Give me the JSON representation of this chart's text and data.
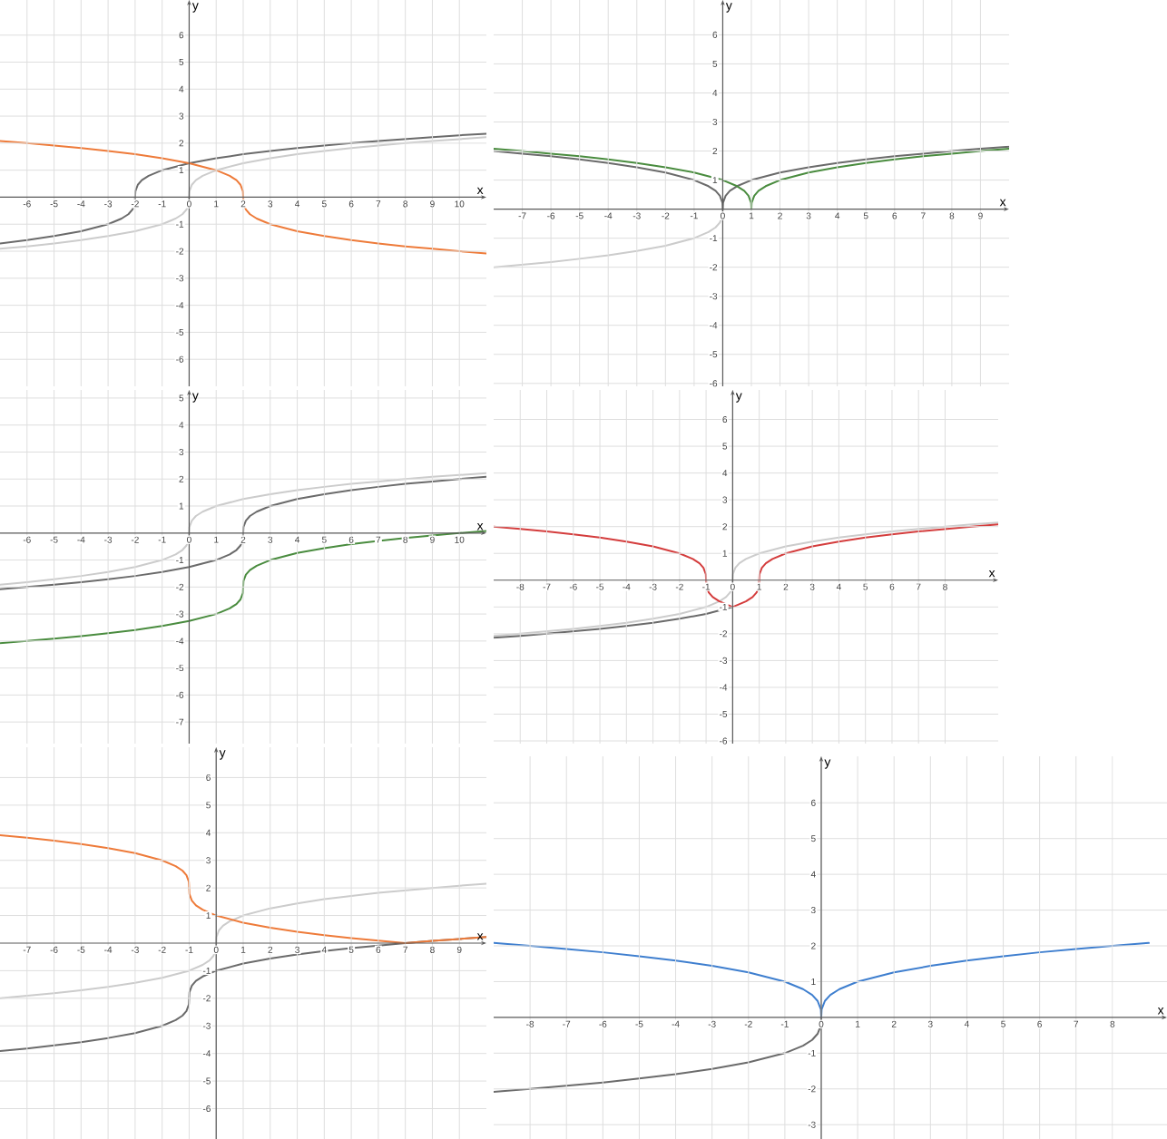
{
  "chart_data": [
    {
      "type": "line",
      "xlabel": "x",
      "ylabel": "y",
      "xlim": [
        -7,
        11
      ],
      "ylim": [
        -7,
        7.3
      ],
      "xticks": [
        -6,
        -5,
        -4,
        -3,
        -2,
        -1,
        0,
        1,
        2,
        3,
        4,
        5,
        6,
        7,
        8,
        9,
        10
      ],
      "yticks": [
        -6,
        -5,
        -4,
        -3,
        -2,
        -1,
        1,
        2,
        3,
        4,
        5,
        6
      ],
      "grid": true,
      "marker": "none",
      "line_style": "solid",
      "series": [
        {
          "color": "#cccccc",
          "x": [
            -7,
            -6,
            -5,
            -4,
            -3,
            -2,
            -1,
            -0.5,
            -0.25,
            -0.1,
            -0.01,
            0,
            0.01,
            0.1,
            0.25,
            0.5,
            1,
            2,
            3,
            4,
            5,
            6,
            7,
            8,
            9,
            10,
            11
          ],
          "values": [
            -1.91,
            -1.82,
            -1.71,
            -1.59,
            -1.44,
            -1.26,
            -1,
            -0.79,
            -0.63,
            -0.46,
            -0.22,
            0,
            0.22,
            0.46,
            0.63,
            0.79,
            1,
            1.26,
            1.44,
            1.59,
            1.71,
            1.82,
            1.91,
            2,
            2.08,
            2.15,
            2.22
          ]
        },
        {
          "color": "#6b6b6b",
          "x": [
            -7,
            -6,
            -5,
            -4,
            -3,
            -2.5,
            -2.25,
            -2.1,
            -2.01,
            -2,
            -1.99,
            -1.9,
            -1.75,
            -1.5,
            -1,
            0,
            1,
            2,
            3,
            4,
            5,
            6,
            7,
            8,
            9,
            10,
            11
          ],
          "values": [
            -1.71,
            -1.59,
            -1.44,
            -1.26,
            -1,
            -0.79,
            -0.63,
            -0.46,
            -0.22,
            0,
            0.22,
            0.46,
            0.63,
            0.79,
            1,
            1.26,
            1.44,
            1.59,
            1.71,
            1.82,
            1.91,
            2,
            2.08,
            2.15,
            2.22,
            2.29,
            2.35
          ]
        },
        {
          "color": "#ee7b3a",
          "x": [
            -7,
            -6,
            -5,
            -4,
            -3,
            -2,
            -1,
            0,
            1,
            1.5,
            1.75,
            1.9,
            1.99,
            2,
            2.01,
            2.1,
            2.25,
            2.5,
            3,
            4,
            5,
            6,
            7,
            8,
            9,
            10,
            11
          ],
          "values": [
            2.08,
            2,
            1.91,
            1.82,
            1.71,
            1.59,
            1.44,
            1.26,
            1,
            0.79,
            0.63,
            0.46,
            0.22,
            0,
            -0.22,
            -0.46,
            -0.63,
            -0.79,
            -1,
            -1.26,
            -1.44,
            -1.59,
            -1.71,
            -1.82,
            -1.91,
            -2,
            -2.08
          ]
        }
      ]
    },
    {
      "type": "line",
      "xlabel": "x",
      "ylabel": "y",
      "xlim": [
        -8,
        10
      ],
      "ylim": [
        -6.1,
        7.2
      ],
      "xticks": [
        -7,
        -6,
        -5,
        -4,
        -3,
        -2,
        -1,
        0,
        1,
        2,
        3,
        4,
        5,
        6,
        7,
        8,
        9
      ],
      "yticks": [
        -6,
        -5,
        -4,
        -3,
        -2,
        -1,
        1,
        2,
        3,
        4,
        5,
        6
      ],
      "grid": true,
      "marker": "none",
      "line_style": "solid",
      "series": [
        {
          "color": "#cccccc",
          "x": [
            -8,
            -7,
            -6,
            -5,
            -4,
            -3,
            -2,
            -1,
            -0.5,
            -0.25,
            -0.1,
            -0.01,
            0
          ],
          "values": [
            -2,
            -1.91,
            -1.82,
            -1.71,
            -1.59,
            -1.44,
            -1.26,
            -1,
            -0.79,
            -0.63,
            -0.46,
            -0.22,
            0
          ]
        },
        {
          "color": "#6b6b6b",
          "x": [
            -8,
            -7,
            -6,
            -5,
            -4,
            -3,
            -2,
            -1,
            -0.5,
            -0.25,
            -0.1,
            -0.01,
            0,
            0.01,
            0.1,
            0.25,
            0.5,
            1,
            2,
            3,
            4,
            5,
            6,
            7,
            8,
            9,
            10
          ],
          "values": [
            2,
            1.91,
            1.82,
            1.71,
            1.59,
            1.44,
            1.26,
            1,
            0.79,
            0.63,
            0.46,
            0.22,
            0,
            0.22,
            0.46,
            0.63,
            0.79,
            1,
            1.26,
            1.44,
            1.59,
            1.71,
            1.82,
            1.91,
            2,
            2.08,
            2.15
          ]
        },
        {
          "color": "#4a8c3f",
          "x": [
            -8,
            -7,
            -6,
            -5,
            -4,
            -3,
            -2,
            -1,
            0,
            0.5,
            0.75,
            0.9,
            0.99,
            1,
            1.01,
            1.1,
            1.25,
            1.5,
            2,
            3,
            4,
            5,
            6,
            7,
            8,
            9,
            10
          ],
          "values": [
            2.08,
            2,
            1.91,
            1.82,
            1.71,
            1.59,
            1.44,
            1.26,
            1,
            0.79,
            0.63,
            0.46,
            0.22,
            0,
            0.22,
            0.46,
            0.63,
            0.79,
            1,
            1.26,
            1.44,
            1.59,
            1.71,
            1.82,
            1.91,
            2,
            2.08
          ]
        }
      ]
    },
    {
      "type": "line",
      "xlabel": "x",
      "ylabel": "y",
      "xlim": [
        -7,
        11
      ],
      "ylim": [
        -7.8,
        5.3
      ],
      "xticks": [
        -6,
        -5,
        -4,
        -3,
        -2,
        -1,
        0,
        1,
        2,
        3,
        4,
        5,
        6,
        7,
        8,
        9,
        10
      ],
      "yticks": [
        -7,
        -6,
        -5,
        -4,
        -3,
        -2,
        -1,
        1,
        2,
        3,
        4,
        5
      ],
      "grid": true,
      "marker": "none",
      "line_style": "solid",
      "series": [
        {
          "color": "#cccccc",
          "x": [
            -7,
            -6,
            -5,
            -4,
            -3,
            -2,
            -1,
            -0.5,
            -0.25,
            -0.1,
            -0.01,
            0,
            0.01,
            0.1,
            0.25,
            0.5,
            1,
            2,
            3,
            4,
            5,
            6,
            7,
            8,
            9,
            10,
            11
          ],
          "values": [
            -1.91,
            -1.82,
            -1.71,
            -1.59,
            -1.44,
            -1.26,
            -1,
            -0.79,
            -0.63,
            -0.46,
            -0.22,
            0,
            0.22,
            0.46,
            0.63,
            0.79,
            1,
            1.26,
            1.44,
            1.59,
            1.71,
            1.82,
            1.91,
            2,
            2.08,
            2.15,
            2.22
          ]
        },
        {
          "color": "#6b6b6b",
          "x": [
            -7,
            -6,
            -5,
            -4,
            -3,
            -2,
            -1,
            0,
            1,
            1.5,
            1.75,
            1.9,
            1.99,
            2,
            2.01,
            2.1,
            2.25,
            2.5,
            3,
            4,
            5,
            6,
            7,
            8,
            9,
            10,
            11
          ],
          "values": [
            -2.08,
            -2,
            -1.91,
            -1.82,
            -1.71,
            -1.59,
            -1.44,
            -1.26,
            -1,
            -0.79,
            -0.63,
            -0.46,
            -0.22,
            0,
            0.22,
            0.46,
            0.63,
            0.79,
            1,
            1.26,
            1.44,
            1.59,
            1.71,
            1.82,
            1.91,
            2,
            2.08
          ]
        },
        {
          "color": "#4a8c3f",
          "x": [
            -7,
            -6,
            -5,
            -4,
            -3,
            -2,
            -1,
            0,
            1,
            1.5,
            1.75,
            1.9,
            1.99,
            2.01,
            2.1,
            2.25,
            2.5,
            3,
            4,
            5,
            6,
            7,
            8,
            9,
            10,
            11
          ],
          "values": [
            -4.08,
            -4,
            -3.91,
            -3.82,
            -3.71,
            -3.59,
            -3.44,
            -3.26,
            -3,
            -2.79,
            -2.63,
            -2.46,
            -2.22,
            -1.78,
            -1.54,
            -1.37,
            -1.21,
            -1,
            -0.74,
            -0.56,
            -0.41,
            -0.29,
            -0.18,
            -0.09,
            0,
            0.08
          ]
        }
      ]
    },
    {
      "type": "line",
      "xlabel": "x",
      "ylabel": "y",
      "xlim": [
        -9,
        10
      ],
      "ylim": [
        -6.1,
        7.1
      ],
      "xticks": [
        -8,
        -7,
        -6,
        -5,
        -4,
        -3,
        -2,
        -1,
        0,
        1,
        2,
        3,
        4,
        5,
        6,
        7,
        8
      ],
      "yticks": [
        -6,
        -5,
        -4,
        -3,
        -2,
        -1,
        1,
        2,
        3,
        4,
        5,
        6
      ],
      "grid": true,
      "marker": "none",
      "line_style": "solid",
      "series": [
        {
          "color": "#cccccc",
          "x": [
            -9,
            -8,
            -7,
            -6,
            -5,
            -4,
            -3,
            -2,
            -1,
            -0.5,
            -0.25,
            -0.1,
            -0.01,
            0.01,
            0.1,
            0.25,
            0.5,
            1,
            2,
            3,
            4,
            5,
            6,
            7,
            8,
            9,
            10
          ],
          "values": [
            -2.08,
            -2,
            -1.91,
            -1.82,
            -1.71,
            -1.59,
            -1.44,
            -1.26,
            -1,
            -0.79,
            -0.63,
            -0.46,
            -0.22,
            0.22,
            0.46,
            0.63,
            0.79,
            1,
            1.26,
            1.44,
            1.59,
            1.71,
            1.82,
            1.91,
            2,
            2.08,
            2.15
          ]
        },
        {
          "color": "#6b6b6b",
          "x": [
            -9,
            -8,
            -7,
            -6,
            -5,
            -4,
            -3,
            -2,
            -1,
            0
          ],
          "values": [
            -2.15,
            -2.08,
            -2,
            -1.91,
            -1.82,
            -1.71,
            -1.59,
            -1.44,
            -1.26,
            -1
          ]
        },
        {
          "color": "#d43d3d",
          "x": [
            -9,
            -8,
            -7,
            -6,
            -5,
            -4,
            -3,
            -2,
            -1.5,
            -1.25,
            -1.1,
            -1.01,
            -1,
            -0.99,
            -0.9,
            -0.75,
            -0.5,
            0,
            0.5,
            0.75,
            0.9,
            0.99,
            1.01,
            1.1,
            1.25,
            1.5,
            2,
            3,
            4,
            5,
            6,
            7,
            8,
            9,
            10
          ],
          "values": [
            2,
            1.91,
            1.82,
            1.71,
            1.59,
            1.44,
            1.26,
            1,
            0.79,
            0.63,
            0.46,
            0.22,
            0,
            -0.22,
            -0.46,
            -0.63,
            -0.79,
            -1,
            -0.79,
            -0.63,
            -0.46,
            -0.22,
            0.22,
            0.46,
            0.63,
            0.79,
            1,
            1.26,
            1.44,
            1.59,
            1.71,
            1.82,
            1.91,
            2,
            2.08
          ]
        }
      ]
    },
    {
      "type": "line",
      "xlabel": "x",
      "ylabel": "y",
      "xlim": [
        -8,
        10
      ],
      "ylim": [
        -7.1,
        7.1
      ],
      "xticks": [
        -7,
        -6,
        -5,
        -4,
        -3,
        -2,
        -1,
        0,
        1,
        2,
        3,
        4,
        5,
        6,
        7,
        8,
        9
      ],
      "yticks": [
        -6,
        -5,
        -4,
        -3,
        -2,
        -1,
        1,
        2,
        3,
        4,
        5,
        6
      ],
      "grid": true,
      "marker": "none",
      "line_style": "solid",
      "series": [
        {
          "color": "#cccccc",
          "x": [
            -8,
            -7,
            -6,
            -5,
            -4,
            -3,
            -2,
            -1,
            -0.5,
            -0.25,
            -0.1,
            -0.01,
            0.01,
            0.1,
            0.25,
            0.5,
            1,
            2,
            3,
            4,
            5,
            6,
            7,
            8,
            9,
            10
          ],
          "values": [
            -2,
            -1.91,
            -1.82,
            -1.71,
            -1.59,
            -1.44,
            -1.26,
            -1,
            -0.79,
            -0.63,
            -0.46,
            -0.22,
            0.22,
            0.46,
            0.63,
            0.79,
            1,
            1.26,
            1.44,
            1.59,
            1.71,
            1.82,
            1.91,
            2,
            2.08,
            2.15
          ]
        },
        {
          "color": "#6b6b6b",
          "x": [
            -8,
            -7,
            -6,
            -5,
            -4,
            -3,
            -2,
            -1.5,
            -1.25,
            -1.1,
            -1.01,
            -1,
            -0.99,
            -0.9,
            -0.75,
            -0.5,
            0,
            1,
            2,
            3,
            4,
            5,
            6,
            7,
            8,
            9,
            10
          ],
          "values": [
            -3.91,
            -3.82,
            -3.71,
            -3.59,
            -3.44,
            -3.26,
            -3,
            -2.79,
            -2.63,
            -2.46,
            -2.22,
            -2,
            -1.78,
            -1.54,
            -1.37,
            -1.21,
            -1,
            -0.74,
            -0.56,
            -0.41,
            -0.29,
            -0.18,
            -0.09,
            0,
            0.08,
            0.15,
            0.22
          ]
        },
        {
          "color": "#ee7b3a",
          "x": [
            -8,
            -7,
            -6,
            -5,
            -4,
            -3,
            -2,
            -1.5,
            -1.25,
            -1.1,
            -1.01,
            -1,
            -0.99,
            -0.9,
            -0.75,
            -0.5,
            0,
            1,
            2,
            3,
            4,
            5,
            6,
            7,
            8,
            9,
            10
          ],
          "values": [
            3.91,
            3.82,
            3.71,
            3.59,
            3.44,
            3.26,
            3,
            2.79,
            2.63,
            2.46,
            2.22,
            2,
            1.78,
            1.54,
            1.37,
            1.21,
            1,
            0.74,
            0.56,
            0.41,
            0.29,
            0.18,
            0.09,
            0,
            0.08,
            0.15,
            0.22
          ]
        }
      ]
    },
    {
      "type": "line",
      "xlabel": "x",
      "ylabel": "y",
      "xlim": [
        -9,
        9.5
      ],
      "ylim": [
        -3.4,
        7.3
      ],
      "xticks": [
        -8,
        -7,
        -6,
        -5,
        -4,
        -3,
        -2,
        -1,
        0,
        1,
        2,
        3,
        4,
        5,
        6,
        7,
        8
      ],
      "yticks": [
        -3,
        -2,
        -1,
        1,
        2,
        3,
        4,
        5,
        6
      ],
      "grid": true,
      "marker": "none",
      "line_style": "solid",
      "series": [
        {
          "color": "#6b6b6b",
          "x": [
            -9,
            -8,
            -7,
            -6,
            -5,
            -4,
            -3,
            -2,
            -1,
            -0.5,
            -0.25,
            -0.1,
            -0.01,
            0
          ],
          "values": [
            -2.08,
            -2,
            -1.91,
            -1.82,
            -1.71,
            -1.59,
            -1.44,
            -1.26,
            -1,
            -0.79,
            -0.63,
            -0.46,
            -0.22,
            0
          ]
        },
        {
          "color": "#3f7fcf",
          "x": [
            -9,
            -8,
            -7,
            -6,
            -5,
            -4,
            -3,
            -2,
            -1,
            -0.5,
            -0.25,
            -0.1,
            -0.01,
            0,
            0.01,
            0.1,
            0.25,
            0.5,
            1,
            2,
            3,
            4,
            5,
            6,
            7,
            8,
            9
          ],
          "values": [
            2.08,
            2,
            1.91,
            1.82,
            1.71,
            1.59,
            1.44,
            1.26,
            1,
            0.79,
            0.63,
            0.46,
            0.22,
            0,
            0.22,
            0.46,
            0.63,
            0.79,
            1,
            1.26,
            1.44,
            1.59,
            1.71,
            1.82,
            1.91,
            2,
            2.08
          ]
        }
      ]
    }
  ]
}
